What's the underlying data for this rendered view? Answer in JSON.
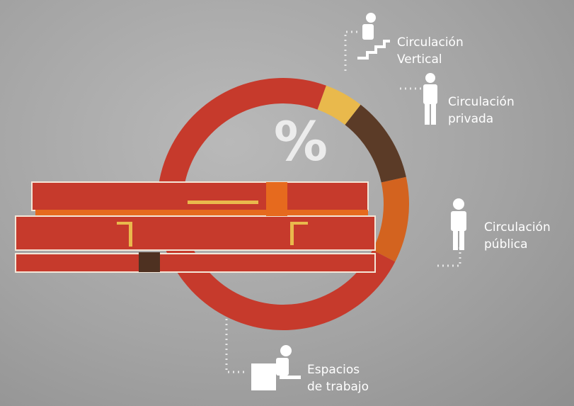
{
  "chart_data": {
    "type": "donut",
    "title": "%",
    "categories": [
      "Circulación Vertical",
      "Circulación privada",
      "Circulación pública",
      "Espacios de trabajo"
    ],
    "values": [
      5,
      11,
      11,
      73
    ],
    "colors": [
      "#e9b94c",
      "#5b3b27",
      "#d3631f",
      "#c63a2c"
    ]
  }
}
